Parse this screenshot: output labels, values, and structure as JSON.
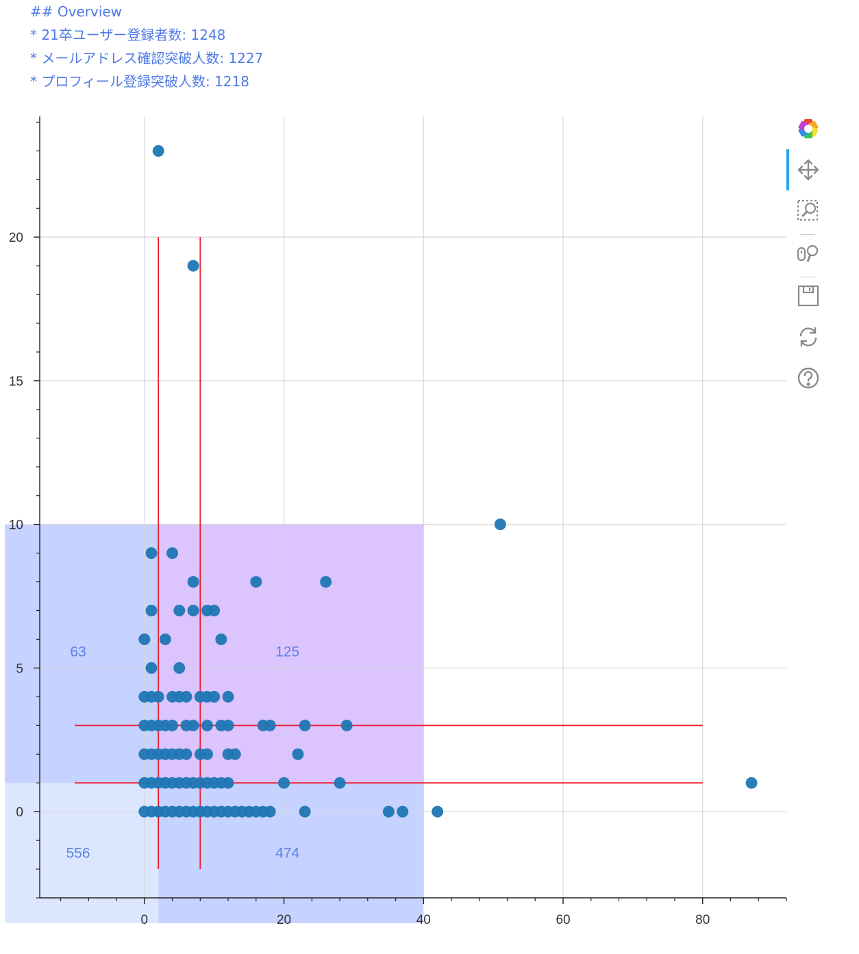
{
  "overview": {
    "heading": "## Overview",
    "lines": [
      "* 21卒ユーザー登録者数: 1248",
      "* メールアドレス確認突破人数: 1227",
      "* プロフィール登録突破人数: 1218"
    ]
  },
  "toolbar": {
    "tools": [
      {
        "name": "bokeh-logo",
        "icon": "bokeh-logo-icon",
        "active": false
      },
      {
        "name": "pan",
        "icon": "pan-icon",
        "active": true
      },
      {
        "name": "box-zoom",
        "icon": "box-zoom-icon",
        "active": false
      },
      {
        "name": "wheel-zoom",
        "icon": "wheel-zoom-icon",
        "active": false
      },
      {
        "name": "save",
        "icon": "save-icon",
        "active": false
      },
      {
        "name": "reset",
        "icon": "reset-icon",
        "active": false
      },
      {
        "name": "help",
        "icon": "help-icon",
        "active": false
      }
    ],
    "active_color": "#26a7e8"
  },
  "chart_data": {
    "type": "scatter",
    "title": "",
    "xlabel": "",
    "ylabel": "",
    "xlim": [
      -15,
      92
    ],
    "ylim": [
      -3.0,
      24.2
    ],
    "x_ticks": [
      0,
      20,
      40,
      60,
      80
    ],
    "y_ticks": [
      0,
      5,
      10,
      15,
      20
    ],
    "x_minor_step": 4,
    "y_minor_step": 1,
    "grid": true,
    "point_color": "#1f77b4",
    "regions": [
      {
        "x0": -20,
        "x1": 2,
        "y0": -4,
        "y1": 1,
        "color": "#d6e2ff",
        "opacity": 0.85,
        "label": "556",
        "label_x": -9.5,
        "label_y": -1.6
      },
      {
        "x0": -20,
        "x1": 2,
        "y0": 1,
        "y1": 10,
        "color": "#a8baff",
        "opacity": 0.65,
        "label": "63",
        "label_x": -9.5,
        "label_y": 5.4
      },
      {
        "x0": 2,
        "x1": 40,
        "y0": -4,
        "y1": 1,
        "color": "#a8baff",
        "opacity": 0.65,
        "label": "474",
        "label_x": 20.5,
        "label_y": -1.6
      },
      {
        "x0": 2,
        "x1": 40,
        "y0": 1,
        "y1": 10,
        "color": "#c9a4ff",
        "opacity": 0.65,
        "label": "125",
        "label_x": 20.5,
        "label_y": 5.4
      }
    ],
    "lines": [
      {
        "x": [
          2,
          2
        ],
        "y": [
          -2,
          20
        ],
        "color": "#ee1c2e"
      },
      {
        "x": [
          8,
          8
        ],
        "y": [
          -2,
          20
        ],
        "color": "#ee1c2e"
      },
      {
        "x": [
          -10,
          80
        ],
        "y": [
          3,
          3
        ],
        "color": "#ee1c2e"
      },
      {
        "x": [
          -10,
          80
        ],
        "y": [
          1,
          1
        ],
        "color": "#ee1c2e"
      }
    ],
    "points": [
      [
        2,
        23
      ],
      [
        7,
        19
      ],
      [
        51,
        10
      ],
      [
        87,
        1
      ],
      [
        1,
        9
      ],
      [
        4,
        9
      ],
      [
        7,
        8
      ],
      [
        16,
        8
      ],
      [
        26,
        8
      ],
      [
        1,
        7
      ],
      [
        5,
        7
      ],
      [
        7,
        7
      ],
      [
        9,
        7
      ],
      [
        10,
        7
      ],
      [
        0,
        6
      ],
      [
        3,
        6
      ],
      [
        11,
        6
      ],
      [
        1,
        5
      ],
      [
        5,
        5
      ],
      [
        0,
        4
      ],
      [
        1,
        4
      ],
      [
        2,
        4
      ],
      [
        4,
        4
      ],
      [
        5,
        4
      ],
      [
        6,
        4
      ],
      [
        8,
        4
      ],
      [
        9,
        4
      ],
      [
        10,
        4
      ],
      [
        12,
        4
      ],
      [
        0,
        3
      ],
      [
        1,
        3
      ],
      [
        2,
        3
      ],
      [
        3,
        3
      ],
      [
        4,
        3
      ],
      [
        6,
        3
      ],
      [
        7,
        3
      ],
      [
        9,
        3
      ],
      [
        11,
        3
      ],
      [
        12,
        3
      ],
      [
        17,
        3
      ],
      [
        18,
        3
      ],
      [
        23,
        3
      ],
      [
        29,
        3
      ],
      [
        0,
        2
      ],
      [
        1,
        2
      ],
      [
        2,
        2
      ],
      [
        3,
        2
      ],
      [
        4,
        2
      ],
      [
        5,
        2
      ],
      [
        6,
        2
      ],
      [
        8,
        2
      ],
      [
        9,
        2
      ],
      [
        12,
        2
      ],
      [
        13,
        2
      ],
      [
        22,
        2
      ],
      [
        0,
        1
      ],
      [
        1,
        1
      ],
      [
        2,
        1
      ],
      [
        3,
        1
      ],
      [
        4,
        1
      ],
      [
        5,
        1
      ],
      [
        6,
        1
      ],
      [
        7,
        1
      ],
      [
        8,
        1
      ],
      [
        9,
        1
      ],
      [
        10,
        1
      ],
      [
        11,
        1
      ],
      [
        12,
        1
      ],
      [
        20,
        1
      ],
      [
        28,
        1
      ],
      [
        0,
        0
      ],
      [
        1,
        0
      ],
      [
        2,
        0
      ],
      [
        3,
        0
      ],
      [
        4,
        0
      ],
      [
        5,
        0
      ],
      [
        6,
        0
      ],
      [
        7,
        0
      ],
      [
        8,
        0
      ],
      [
        9,
        0
      ],
      [
        10,
        0
      ],
      [
        11,
        0
      ],
      [
        12,
        0
      ],
      [
        13,
        0
      ],
      [
        14,
        0
      ],
      [
        15,
        0
      ],
      [
        16,
        0
      ],
      [
        17,
        0
      ],
      [
        18,
        0
      ],
      [
        23,
        0
      ],
      [
        35,
        0
      ],
      [
        37,
        0
      ],
      [
        42,
        0
      ]
    ]
  }
}
